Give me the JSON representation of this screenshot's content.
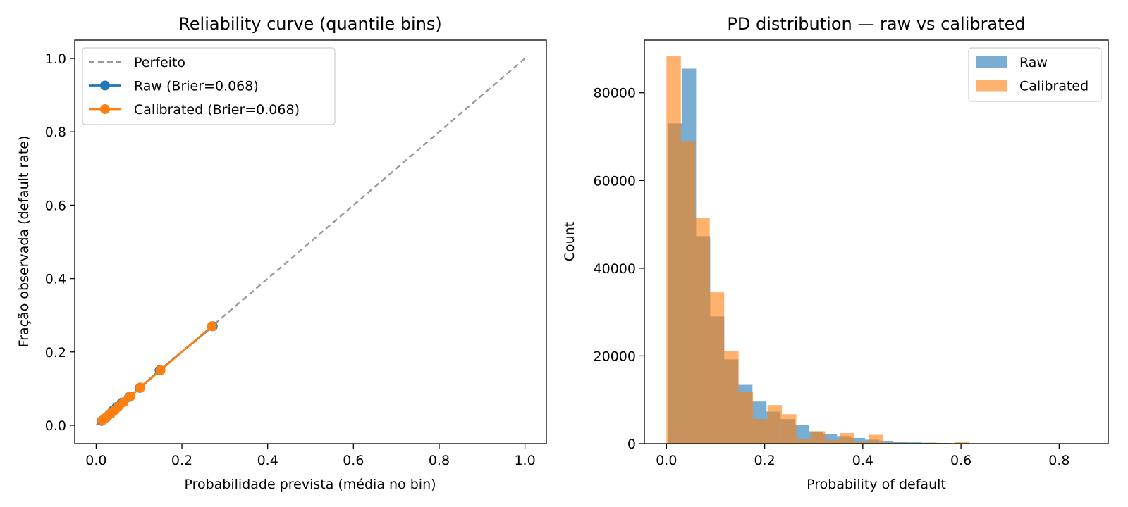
{
  "chart_data": [
    {
      "type": "line",
      "title": "Reliability curve (quantile bins)",
      "xlabel": "Probabilidade prevista (média no bin)",
      "ylabel": "Fração observada (default rate)",
      "xlim": [
        -0.05,
        1.05
      ],
      "ylim": [
        -0.05,
        1.05
      ],
      "xticks": [
        "0.0",
        "0.2",
        "0.4",
        "0.6",
        "0.8",
        "1.0"
      ],
      "yticks": [
        "0.0",
        "0.2",
        "0.4",
        "0.6",
        "0.8",
        "1.0"
      ],
      "grid": false,
      "legend_position": "top-left",
      "series": [
        {
          "name": "Perfeito",
          "color": "#999999",
          "style": "dashed",
          "x": [
            0.0,
            1.0
          ],
          "y": [
            0.0,
            1.0
          ]
        },
        {
          "name": "Raw (Brier=0.068)",
          "color": "#1f77b4",
          "style": "line-marker",
          "x": [
            0.013,
            0.019,
            0.025,
            0.031,
            0.039,
            0.048,
            0.06,
            0.077,
            0.102,
            0.148,
            0.272
          ],
          "y": [
            0.012,
            0.018,
            0.023,
            0.03,
            0.04,
            0.05,
            0.062,
            0.077,
            0.102,
            0.15,
            0.27
          ]
        },
        {
          "name": "Calibrated (Brier=0.068)",
          "color": "#ff7f0e",
          "style": "line-marker",
          "x": [
            0.014,
            0.02,
            0.027,
            0.034,
            0.043,
            0.051,
            0.064,
            0.079,
            0.103,
            0.15,
            0.27
          ],
          "y": [
            0.013,
            0.019,
            0.025,
            0.032,
            0.041,
            0.05,
            0.063,
            0.078,
            0.103,
            0.15,
            0.27
          ]
        }
      ]
    },
    {
      "type": "histogram",
      "title": "PD distribution — raw vs calibrated",
      "xlabel": "Probability of default",
      "ylabel": "Count",
      "xlim": [
        -0.045,
        0.9
      ],
      "ylim": [
        0,
        92000
      ],
      "xticks": [
        "0.0",
        "0.2",
        "0.4",
        "0.6",
        "0.8"
      ],
      "yticks": [
        "0",
        "20000",
        "40000",
        "60000",
        "80000"
      ],
      "grid": false,
      "legend_position": "top-right",
      "series": [
        {
          "name": "Raw",
          "color": "#1f77b4",
          "alpha": 0.6,
          "bin_edges": [
            0.003,
            0.0317,
            0.0604,
            0.0891,
            0.1178,
            0.1465,
            0.1752,
            0.2039,
            0.2326,
            0.2613,
            0.29,
            0.3187,
            0.3474,
            0.3761,
            0.4048,
            0.4335,
            0.4622,
            0.4909,
            0.5196,
            0.5483,
            0.577,
            0.6057,
            0.6344,
            0.6631,
            0.6918,
            0.7205,
            0.7492,
            0.7779,
            0.8066,
            0.8353,
            0.864
          ],
          "counts": [
            73000,
            85500,
            47300,
            29000,
            19200,
            13400,
            9600,
            7300,
            5600,
            4300,
            2800,
            2100,
            1700,
            1300,
            900,
            650,
            400,
            300,
            220,
            150,
            100,
            70,
            50,
            40,
            30,
            20,
            15,
            10,
            8,
            5
          ]
        },
        {
          "name": "Calibrated",
          "color": "#ff7f0e",
          "alpha": 0.6,
          "bin_edges": [
            0.0,
            0.0294,
            0.0588,
            0.0882,
            0.1176,
            0.147,
            0.1764,
            0.2058,
            0.2352,
            0.2646,
            0.294,
            0.3234,
            0.3528,
            0.3822,
            0.4116,
            0.441,
            0.4704,
            0.4998,
            0.5292,
            0.5586,
            0.588,
            0.6174,
            0.6468,
            0.6762,
            0.7056,
            0.735,
            0.7644,
            0.7938,
            0.8232,
            0.8526,
            0.882
          ],
          "counts": [
            88300,
            69000,
            51500,
            34500,
            21200,
            11800,
            5600,
            8800,
            6700,
            1000,
            2800,
            800,
            2400,
            500,
            2000,
            200,
            150,
            100,
            200,
            50,
            400,
            0,
            0,
            0,
            0,
            0,
            0,
            0,
            0,
            0
          ]
        }
      ]
    }
  ]
}
